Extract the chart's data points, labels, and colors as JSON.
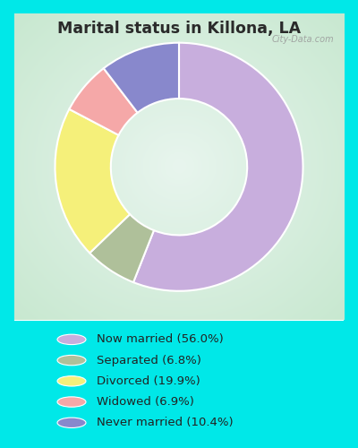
{
  "title": "Marital status in Killona, LA",
  "slices": [
    56.0,
    6.8,
    19.9,
    6.9,
    10.4
  ],
  "labels": [
    "Now married (56.0%)",
    "Separated (6.8%)",
    "Divorced (19.9%)",
    "Widowed (6.9%)",
    "Never married (10.4%)"
  ],
  "colors": [
    "#c8aedd",
    "#afc09a",
    "#f5f07a",
    "#f5a8a8",
    "#8888cc"
  ],
  "legend_colors": [
    "#c8aedd",
    "#afc09a",
    "#f5f07a",
    "#f5a8a8",
    "#8888cc"
  ],
  "bg_outer": "#00e8e8",
  "bg_chart_edge": "#c8e8d0",
  "bg_chart_center": "#e8f5ee",
  "title_color": "#2a2a2a",
  "watermark": "City-Data.com",
  "donut_width": 0.45,
  "start_angle": 90
}
